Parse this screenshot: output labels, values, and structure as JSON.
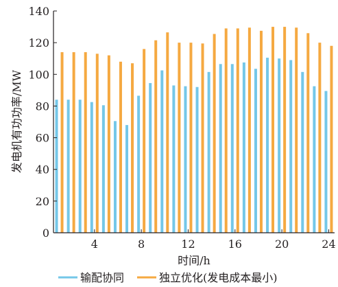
{
  "chart_data": {
    "type": "bar",
    "title": "",
    "xlabel": "时间/h",
    "ylabel": "发电机有功功率/MW",
    "xlim": [
      0.5,
      24.5
    ],
    "ylim": [
      0,
      140
    ],
    "xticks": [
      4,
      8,
      12,
      16,
      20,
      24
    ],
    "yticks": [
      0,
      20,
      40,
      60,
      80,
      100,
      120,
      140
    ],
    "grid": false,
    "legend_position": "bottom",
    "categories": [
      1,
      2,
      3,
      4,
      5,
      6,
      7,
      8,
      9,
      10,
      11,
      12,
      13,
      14,
      15,
      16,
      17,
      18,
      19,
      20,
      21,
      22,
      23,
      24
    ],
    "series": [
      {
        "name": "输配协同",
        "color": "#74c7e8",
        "values": [
          84,
          84,
          84,
          82.5,
          80.5,
          70.5,
          68,
          86.5,
          94.5,
          102.5,
          93,
          92.5,
          92,
          101.5,
          106.5,
          106.5,
          107.5,
          103.5,
          110.5,
          110,
          109,
          101.5,
          92.5,
          89.5
        ]
      },
      {
        "name": "独立优化(发电成本最小)",
        "color": "#f5a941",
        "values": [
          114,
          114,
          114,
          113,
          112,
          108,
          107,
          116,
          121.5,
          126.5,
          120,
          120,
          119.5,
          125.5,
          129,
          129,
          129.5,
          127.5,
          130,
          130,
          129.5,
          126,
          120,
          118
        ]
      }
    ]
  }
}
